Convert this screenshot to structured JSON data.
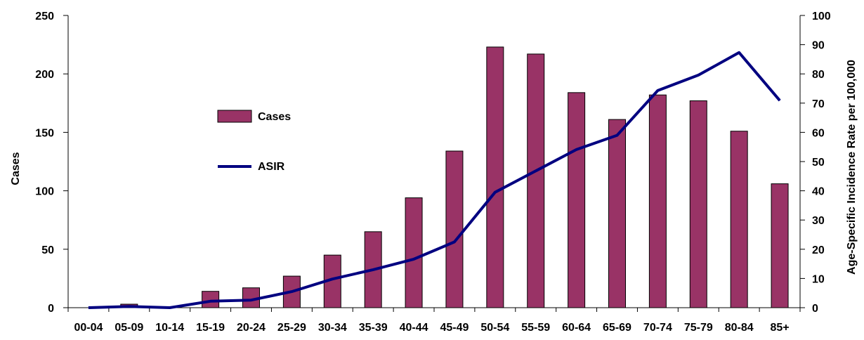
{
  "chart_data": {
    "type": "bar",
    "categories": [
      "00-04",
      "05-09",
      "10-14",
      "15-19",
      "20-24",
      "25-29",
      "30-34",
      "35-39",
      "40-44",
      "45-49",
      "50-54",
      "55-59",
      "60-64",
      "65-69",
      "70-74",
      "75-79",
      "80-84",
      "85+"
    ],
    "series": [
      {
        "name": "Cases",
        "type": "bar",
        "axis": "left",
        "color": "#993366",
        "values": [
          0,
          3,
          0,
          14,
          17,
          27,
          45,
          65,
          94,
          134,
          223,
          217,
          184,
          161,
          182,
          177,
          151,
          106
        ]
      },
      {
        "name": "ASIR",
        "type": "line",
        "axis": "right",
        "color": "#000080",
        "values": [
          0,
          0.4,
          0,
          2.2,
          2.6,
          5.5,
          9.8,
          13.0,
          16.6,
          22.5,
          39.5,
          46.8,
          54.1,
          59.0,
          74.3,
          79.6,
          87.3,
          70.9
        ]
      }
    ],
    "ylabel": "Cases",
    "ylabel_right": "Age-Specific Incidence Rate per 100,000",
    "ylim": [
      0,
      250
    ],
    "ylim_right": [
      0,
      100
    ],
    "yticks": [
      "0",
      "50",
      "100",
      "150",
      "200",
      "250"
    ],
    "yticks_right": [
      "0",
      "10",
      "20",
      "30",
      "40",
      "50",
      "60",
      "70",
      "80",
      "90",
      "100"
    ],
    "grid": false,
    "legend_position": "upper-left-center"
  }
}
